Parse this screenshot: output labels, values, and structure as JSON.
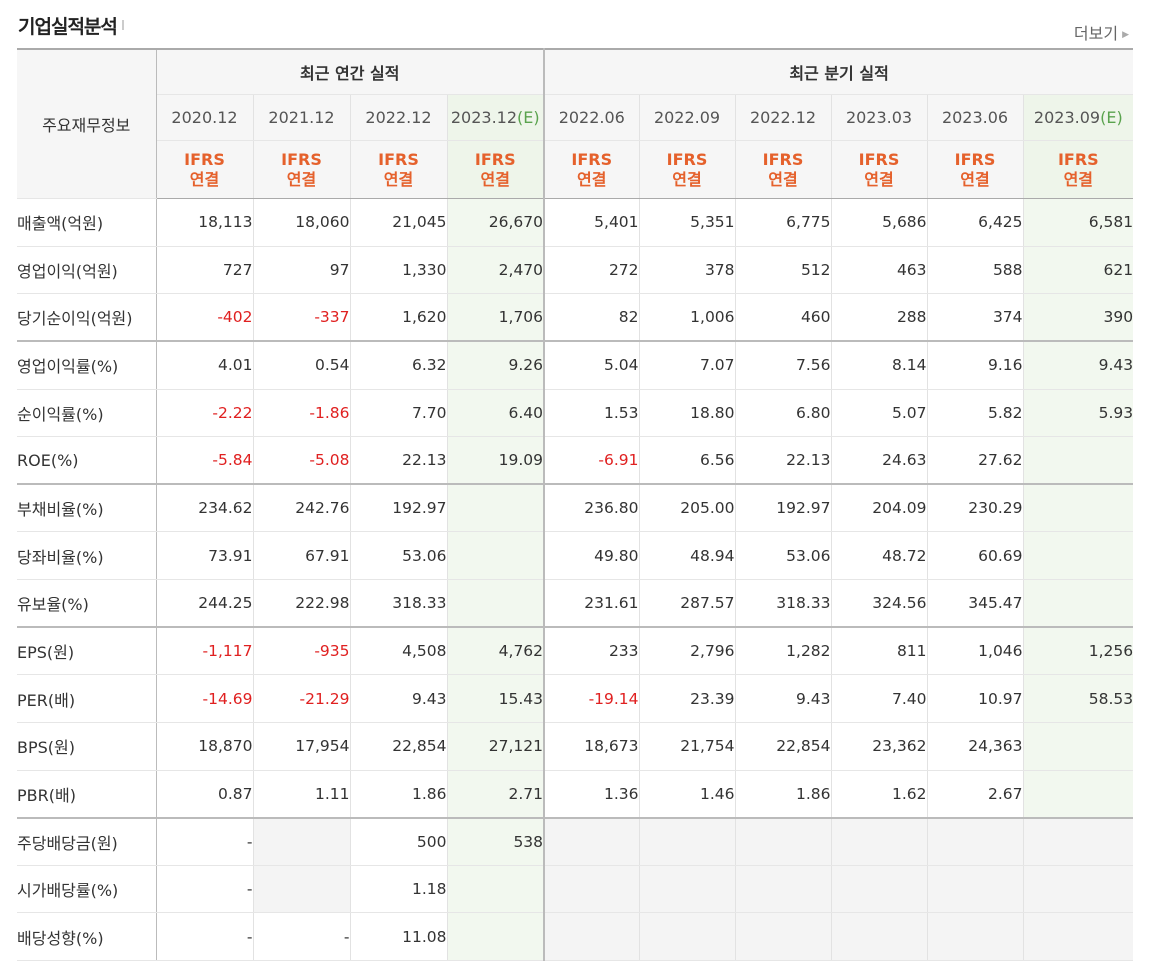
{
  "title": "기업실적분석",
  "more_label": "더보기",
  "header": {
    "row_label": "주요재무정보",
    "annual_group": "최근 연간 실적",
    "quarter_group": "최근 분기 실적",
    "periods": [
      {
        "label": "2020.12",
        "est": ""
      },
      {
        "label": "2021.12",
        "est": ""
      },
      {
        "label": "2022.12",
        "est": ""
      },
      {
        "label": "2023.12",
        "est": "(E)"
      },
      {
        "label": "2022.06",
        "est": ""
      },
      {
        "label": "2022.09",
        "est": ""
      },
      {
        "label": "2022.12",
        "est": ""
      },
      {
        "label": "2023.03",
        "est": ""
      },
      {
        "label": "2023.06",
        "est": ""
      },
      {
        "label": "2023.09",
        "est": "(E)"
      }
    ],
    "basis_line1": "IFRS",
    "basis_line2": "연결"
  },
  "rows": [
    {
      "label": "매출액(억원)",
      "values": [
        "18,113",
        "18,060",
        "21,045",
        "26,670",
        "5,401",
        "5,351",
        "6,775",
        "5,686",
        "6,425",
        "6,581"
      ]
    },
    {
      "label": "영업이익(억원)",
      "values": [
        "727",
        "97",
        "1,330",
        "2,470",
        "272",
        "378",
        "512",
        "463",
        "588",
        "621"
      ]
    },
    {
      "label": "당기순이익(억원)",
      "values": [
        "-402",
        "-337",
        "1,620",
        "1,706",
        "82",
        "1,006",
        "460",
        "288",
        "374",
        "390"
      ]
    },
    {
      "label": "영업이익률(%)",
      "values": [
        "4.01",
        "0.54",
        "6.32",
        "9.26",
        "5.04",
        "7.07",
        "7.56",
        "8.14",
        "9.16",
        "9.43"
      ]
    },
    {
      "label": "순이익률(%)",
      "values": [
        "-2.22",
        "-1.86",
        "7.70",
        "6.40",
        "1.53",
        "18.80",
        "6.80",
        "5.07",
        "5.82",
        "5.93"
      ]
    },
    {
      "label": "ROE(%)",
      "values": [
        "-5.84",
        "-5.08",
        "22.13",
        "19.09",
        "-6.91",
        "6.56",
        "22.13",
        "24.63",
        "27.62",
        ""
      ]
    },
    {
      "label": "부채비율(%)",
      "values": [
        "234.62",
        "242.76",
        "192.97",
        "",
        "236.80",
        "205.00",
        "192.97",
        "204.09",
        "230.29",
        ""
      ]
    },
    {
      "label": "당좌비율(%)",
      "values": [
        "73.91",
        "67.91",
        "53.06",
        "",
        "49.80",
        "48.94",
        "53.06",
        "48.72",
        "60.69",
        ""
      ]
    },
    {
      "label": "유보율(%)",
      "values": [
        "244.25",
        "222.98",
        "318.33",
        "",
        "231.61",
        "287.57",
        "318.33",
        "324.56",
        "345.47",
        ""
      ]
    },
    {
      "label": "EPS(원)",
      "values": [
        "-1,117",
        "-935",
        "4,508",
        "4,762",
        "233",
        "2,796",
        "1,282",
        "811",
        "1,046",
        "1,256"
      ]
    },
    {
      "label": "PER(배)",
      "values": [
        "-14.69",
        "-21.29",
        "9.43",
        "15.43",
        "-19.14",
        "23.39",
        "9.43",
        "7.40",
        "10.97",
        "58.53"
      ]
    },
    {
      "label": "BPS(원)",
      "values": [
        "18,870",
        "17,954",
        "22,854",
        "27,121",
        "18,673",
        "21,754",
        "22,854",
        "23,362",
        "24,363",
        ""
      ]
    },
    {
      "label": "PBR(배)",
      "values": [
        "0.87",
        "1.11",
        "1.86",
        "2.71",
        "1.36",
        "1.46",
        "1.86",
        "1.62",
        "2.67",
        ""
      ]
    },
    {
      "label": "주당배당금(원)",
      "values": [
        "-",
        "",
        "500",
        "538",
        "",
        "",
        "",
        "",
        "",
        ""
      ]
    },
    {
      "label": "시가배당률(%)",
      "values": [
        "-",
        "",
        "1.18",
        "",
        "",
        "",
        "",
        "",
        "",
        ""
      ]
    },
    {
      "label": "배당성향(%)",
      "values": [
        "-",
        "-",
        "11.08",
        "",
        "",
        "",
        "",
        "",
        "",
        ""
      ]
    }
  ]
}
